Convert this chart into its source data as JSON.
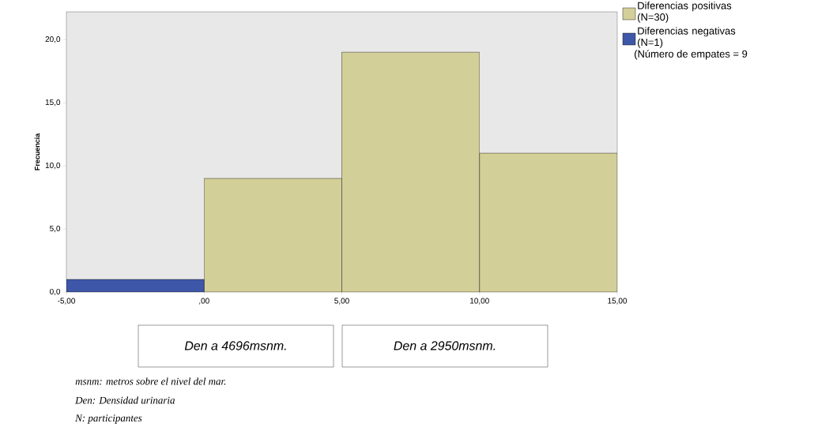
{
  "chart_data": {
    "type": "histogram",
    "ylabel": "Frecuencia",
    "bins": [
      -5,
      0,
      5,
      10,
      15
    ],
    "series": [
      {
        "name": "Diferencias positivas (N=30)",
        "color": "#d3cf98",
        "values": [
          null,
          9,
          19,
          11
        ]
      },
      {
        "name": "Diferencias negativas (N=1)",
        "color": "#3f57a8",
        "values": [
          1,
          null,
          null,
          null
        ]
      }
    ],
    "xlim": [
      -5,
      15
    ],
    "ylim": [
      0,
      22.2
    ],
    "xticks": [
      {
        "value": -5,
        "label": "-5,00"
      },
      {
        "value": 0,
        "label": ",00"
      },
      {
        "value": 5,
        "label": "5,00"
      },
      {
        "value": 10,
        "label": "10,00"
      },
      {
        "value": 15,
        "label": "15,00"
      }
    ],
    "yticks": [
      {
        "value": 0,
        "label": "0,0"
      },
      {
        "value": 5,
        "label": "5,0"
      },
      {
        "value": 10,
        "label": "10,0"
      },
      {
        "value": 15,
        "label": "15,0"
      },
      {
        "value": 20,
        "label": "20,0"
      }
    ],
    "grid": false,
    "legend": "top right",
    "annotations": [
      "(Número de empates = 9",
      "Den a 4696msnm.",
      "Den a 2950msnm.",
      "msnm: metros sobre el nivel del mar.",
      "Den: Densidad urinaria",
      "N: participantes"
    ]
  }
}
